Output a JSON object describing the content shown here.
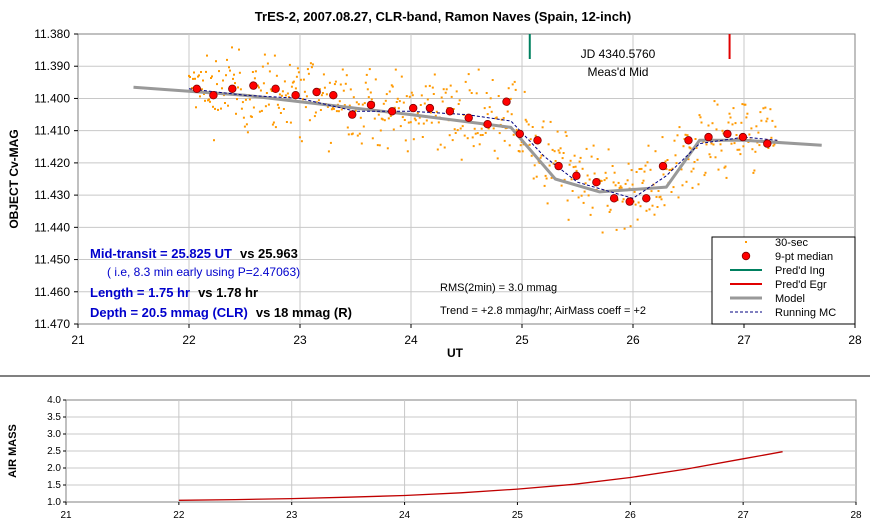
{
  "chart_data": [
    {
      "type": "scatter",
      "title": "TrES-2, 2007.08.27, CLR-band, Ramon Naves (Spain, 12-inch)",
      "xlabel": "UT",
      "ylabel": "OBJECT Cv-MAG",
      "xlim": [
        21,
        28
      ],
      "ylim": [
        11.38,
        11.47
      ],
      "y_inverted": true,
      "x_ticks": [
        "21",
        "22",
        "23",
        "24",
        "25",
        "26",
        "27",
        "28"
      ],
      "y_ticks": [
        "11.380",
        "11.390",
        "11.400",
        "11.410",
        "11.420",
        "11.430",
        "11.440",
        "11.450",
        "11.460",
        "11.470"
      ],
      "grid": true,
      "legend_position": "bottom-right",
      "legend": [
        "30-sec",
        "9-pt median",
        "Pred'd Ing",
        "Pred'd Egr",
        "Model",
        "Running MC"
      ],
      "colors": {
        "raw": "#ff9900",
        "median": "#ff0000",
        "ingress": "#008060",
        "egress": "#e00000",
        "model": "#999999",
        "running": "#000080",
        "blue_text": "#0000cc",
        "grid": "#c8c8c8"
      },
      "series": [
        {
          "name": "9-pt median",
          "x": [
            22.07,
            22.22,
            22.39,
            22.58,
            22.78,
            22.96,
            23.15,
            23.3,
            23.47,
            23.64,
            23.83,
            24.02,
            24.17,
            24.35,
            24.52,
            24.69,
            24.86,
            24.98,
            25.14,
            25.33,
            25.49,
            25.67,
            25.83,
            25.97,
            26.12,
            26.27,
            26.5,
            26.68,
            26.85,
            26.99,
            27.21
          ],
          "y": [
            11.397,
            11.399,
            11.397,
            11.396,
            11.397,
            11.399,
            11.398,
            11.399,
            11.405,
            11.402,
            11.404,
            11.403,
            11.403,
            11.404,
            11.406,
            11.408,
            11.401,
            11.411,
            11.413,
            11.421,
            11.424,
            11.426,
            11.431,
            11.432,
            11.431,
            11.421,
            11.413,
            11.412,
            11.411,
            11.412,
            11.414
          ]
        },
        {
          "name": "Model",
          "x": [
            21.5,
            22.5,
            23.0,
            24.0,
            24.9,
            25.3,
            25.7,
            26.3,
            26.6,
            27.0,
            27.7
          ],
          "y": [
            11.3965,
            11.399,
            11.401,
            11.405,
            11.409,
            11.425,
            11.429,
            11.4275,
            11.413,
            11.413,
            11.4145
          ]
        },
        {
          "name": "Running MC",
          "x": [
            22.0,
            22.5,
            23.0,
            23.5,
            24.0,
            24.5,
            24.9,
            25.2,
            25.5,
            25.8,
            26.0,
            26.3,
            26.6,
            27.0,
            27.3
          ],
          "y": [
            11.397,
            11.399,
            11.4,
            11.404,
            11.404,
            11.405,
            11.407,
            11.418,
            11.426,
            11.429,
            11.431,
            11.424,
            11.414,
            11.412,
            11.413
          ]
        }
      ],
      "vertical_markers": [
        {
          "name": "Pred'd Ing",
          "x": 25.07
        },
        {
          "name": "Pred'd Egr",
          "x": 26.87
        }
      ],
      "annotations": {
        "jd": "JD 4340.5760",
        "meas_mid": "Meas'd Mid",
        "rms": "RMS(2min) = 3.0 mmag",
        "trend": "Trend = +2.8 mmag/hr; AirMass coeff = +2",
        "mid_transit_bold": "Mid-transit = 25.825 UT",
        "mid_transit_vs": "vs 25.963",
        "early_note": "( i.e, 8.3 min early using P=2.47063)",
        "length_bold": "Length = 1.75 hr",
        "length_vs": "vs 1.78 hr",
        "depth_bold": "Depth = 20.5 mmag (CLR)",
        "depth_vs": "vs 18 mmag (R)"
      }
    },
    {
      "type": "line",
      "title": "",
      "xlabel": "",
      "ylabel": "AIR MASS",
      "xlim": [
        21,
        28
      ],
      "ylim": [
        1.0,
        4.0
      ],
      "x_ticks": [
        "21",
        "22",
        "23",
        "24",
        "25",
        "26",
        "27",
        "28"
      ],
      "y_ticks": [
        "1.0",
        "1.5",
        "2.0",
        "2.5",
        "3.0",
        "3.5",
        "4.0"
      ],
      "grid": true,
      "series": [
        {
          "name": "",
          "x": [
            22.0,
            22.5,
            23.0,
            23.5,
            24.0,
            24.5,
            25.0,
            25.5,
            26.0,
            26.5,
            27.0,
            27.35
          ],
          "y": [
            1.05,
            1.07,
            1.1,
            1.14,
            1.19,
            1.27,
            1.38,
            1.52,
            1.72,
            1.97,
            2.27,
            2.48
          ]
        }
      ]
    }
  ]
}
